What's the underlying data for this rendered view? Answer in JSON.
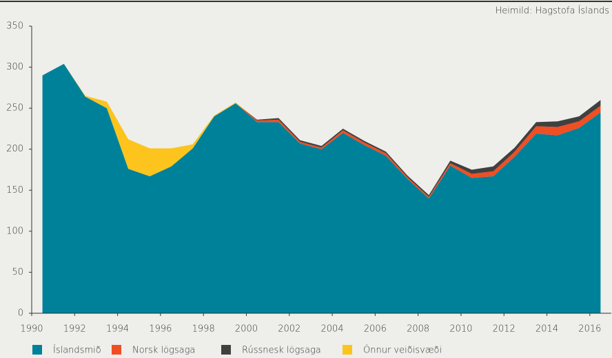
{
  "chart_data": {
    "type": "stacked_area",
    "source": "Heimild: Hagstofa Íslands",
    "x": [
      1990,
      1991,
      1992,
      1993,
      1994,
      1995,
      1996,
      1997,
      1998,
      1999,
      2000,
      2001,
      2002,
      2003,
      2004,
      2005,
      2006,
      2007,
      2008,
      2009,
      2010,
      2011,
      2012,
      2013,
      2014,
      2015,
      2016
    ],
    "series": [
      {
        "name": "Íslandsmið",
        "color": "#00819a",
        "values": [
          290,
          304,
          264,
          250,
          176,
          167,
          179,
          201,
          240,
          256,
          233,
          233,
          207,
          200,
          220,
          205,
          192,
          164,
          140,
          180,
          165,
          167,
          191,
          219,
          217,
          226,
          245
        ]
      },
      {
        "name": "Norsk lögsaga",
        "color": "#f04e23",
        "values": [
          0,
          0,
          0,
          0,
          0,
          0,
          0,
          0,
          0,
          0,
          2,
          3,
          2,
          2,
          3,
          3,
          3,
          2,
          2,
          3,
          5,
          6,
          6,
          9,
          10,
          8,
          8
        ]
      },
      {
        "name": "Rússnesk lögsaga",
        "color": "#404040",
        "values": [
          0,
          0,
          0,
          0,
          0,
          0,
          0,
          0,
          0,
          0,
          1,
          2,
          2,
          2,
          2,
          2,
          2,
          2,
          2,
          3,
          5,
          6,
          5,
          5,
          7,
          6,
          7
        ]
      },
      {
        "name": "Önnur veiðisvæði",
        "color": "#fcc41c",
        "values": [
          0,
          0,
          1,
          8,
          36,
          34,
          22,
          5,
          1,
          1,
          0,
          0,
          0,
          0,
          0,
          0,
          0,
          0,
          0,
          0,
          0,
          0,
          0,
          0,
          0,
          0,
          0
        ]
      }
    ],
    "xlim": [
      1990,
      2017
    ],
    "xticks": [
      1990,
      1992,
      1994,
      1996,
      1998,
      2000,
      2002,
      2004,
      2006,
      2008,
      2010,
      2012,
      2014,
      2016
    ],
    "ylim": [
      0,
      350
    ],
    "yticks": [
      0,
      50,
      100,
      150,
      200,
      250,
      300,
      350
    ]
  }
}
